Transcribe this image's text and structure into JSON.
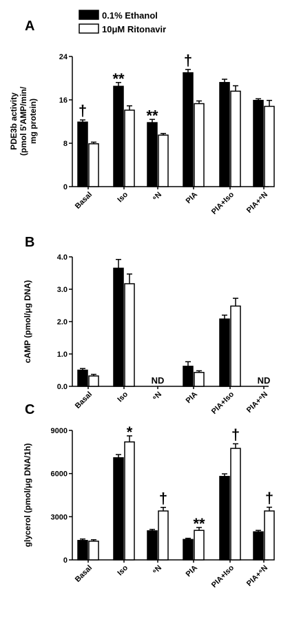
{
  "legend": [
    {
      "label": "0.1%  Ethanol",
      "fill": "#000000"
    },
    {
      "label": "10μM Ritonavir",
      "fill": "#ffffff"
    }
  ],
  "chart_data": [
    {
      "type": "bar",
      "panel": "A",
      "categories": [
        "Basal",
        "Iso",
        "⁶N",
        "PIA",
        "PIA+Iso",
        "PIA+⁶N"
      ],
      "ylabel": "PDE3b activity\n(pmol 5'AMP/min/\nmg protein)",
      "ylim": [
        0,
        24
      ],
      "yticks": [
        {
          "v": 0,
          "t": "0"
        },
        {
          "v": 8,
          "t": "8"
        },
        {
          "v": 16,
          "t": "16"
        },
        {
          "v": 24,
          "t": "24"
        }
      ],
      "series": [
        {
          "name": "0.1%  Ethanol",
          "values": [
            11.9,
            18.5,
            11.8,
            21.0,
            19.2,
            15.9
          ],
          "errors": [
            0.4,
            0.7,
            0.6,
            0.6,
            0.6,
            0.3
          ]
        },
        {
          "name": "10μM Ritonavir",
          "values": [
            7.9,
            14.1,
            9.5,
            15.3,
            17.6,
            14.8
          ],
          "errors": [
            0.3,
            0.8,
            0.3,
            0.5,
            1.0,
            1.1
          ]
        }
      ],
      "annotations": [
        {
          "category": 0,
          "series": 0,
          "text": "†"
        },
        {
          "category": 1,
          "series": 0,
          "text": "**"
        },
        {
          "category": 2,
          "series": 0,
          "text": "**"
        },
        {
          "category": 3,
          "series": 0,
          "text": "†"
        }
      ]
    },
    {
      "type": "bar",
      "panel": "B",
      "categories": [
        "Basal",
        "Iso",
        "⁶N",
        "PIA",
        "PIA+Iso",
        "PIA+⁶N"
      ],
      "ylabel": "cAMP (pmol/μg DNA)",
      "ylim": [
        0,
        4
      ],
      "yticks": [
        {
          "v": 0,
          "t": "0.0"
        },
        {
          "v": 1,
          "t": "1.0"
        },
        {
          "v": 2,
          "t": "2.0"
        },
        {
          "v": 3,
          "t": "3.0"
        },
        {
          "v": 4,
          "t": "4.0"
        }
      ],
      "series": [
        {
          "name": "0.1%  Ethanol",
          "values": [
            0.5,
            3.65,
            null,
            0.62,
            2.08,
            null
          ],
          "errors": [
            0.05,
            0.27,
            null,
            0.14,
            0.12,
            null
          ]
        },
        {
          "name": "10μM Ritonavir",
          "values": [
            0.32,
            3.17,
            null,
            0.43,
            2.48,
            null
          ],
          "errors": [
            0.05,
            0.3,
            null,
            0.05,
            0.24,
            null
          ]
        }
      ],
      "annotations": [
        {
          "category": 2,
          "text": "ND",
          "position": "baseline"
        },
        {
          "category": 5,
          "text": "ND",
          "position": "baseline"
        }
      ]
    },
    {
      "type": "bar",
      "panel": "C",
      "categories": [
        "Basal",
        "Iso",
        "⁶N",
        "PIA",
        "PIA+Iso",
        "PIA+⁶N"
      ],
      "ylabel": "glycerol (pmol/μg DNA/1h)",
      "ylim": [
        0,
        9000
      ],
      "yticks": [
        {
          "v": 0,
          "t": "0"
        },
        {
          "v": 3000,
          "t": "3000"
        },
        {
          "v": 6000,
          "t": "6000"
        },
        {
          "v": 9000,
          "t": "9000"
        }
      ],
      "series": [
        {
          "name": "0.1%  Ethanol",
          "values": [
            1350,
            7100,
            2020,
            1420,
            5800,
            1950
          ],
          "errors": [
            100,
            220,
            100,
            80,
            180,
            100
          ]
        },
        {
          "name": "10μM Ritonavir",
          "values": [
            1300,
            8200,
            3400,
            2050,
            7750,
            3400
          ],
          "errors": [
            100,
            420,
            250,
            200,
            320,
            260
          ]
        }
      ],
      "annotations": [
        {
          "category": 1,
          "series": 1,
          "text": "*"
        },
        {
          "category": 2,
          "series": 1,
          "text": "†"
        },
        {
          "category": 3,
          "series": 1,
          "text": "**"
        },
        {
          "category": 4,
          "series": 1,
          "text": "†"
        },
        {
          "category": 5,
          "series": 1,
          "text": "†"
        }
      ]
    }
  ]
}
